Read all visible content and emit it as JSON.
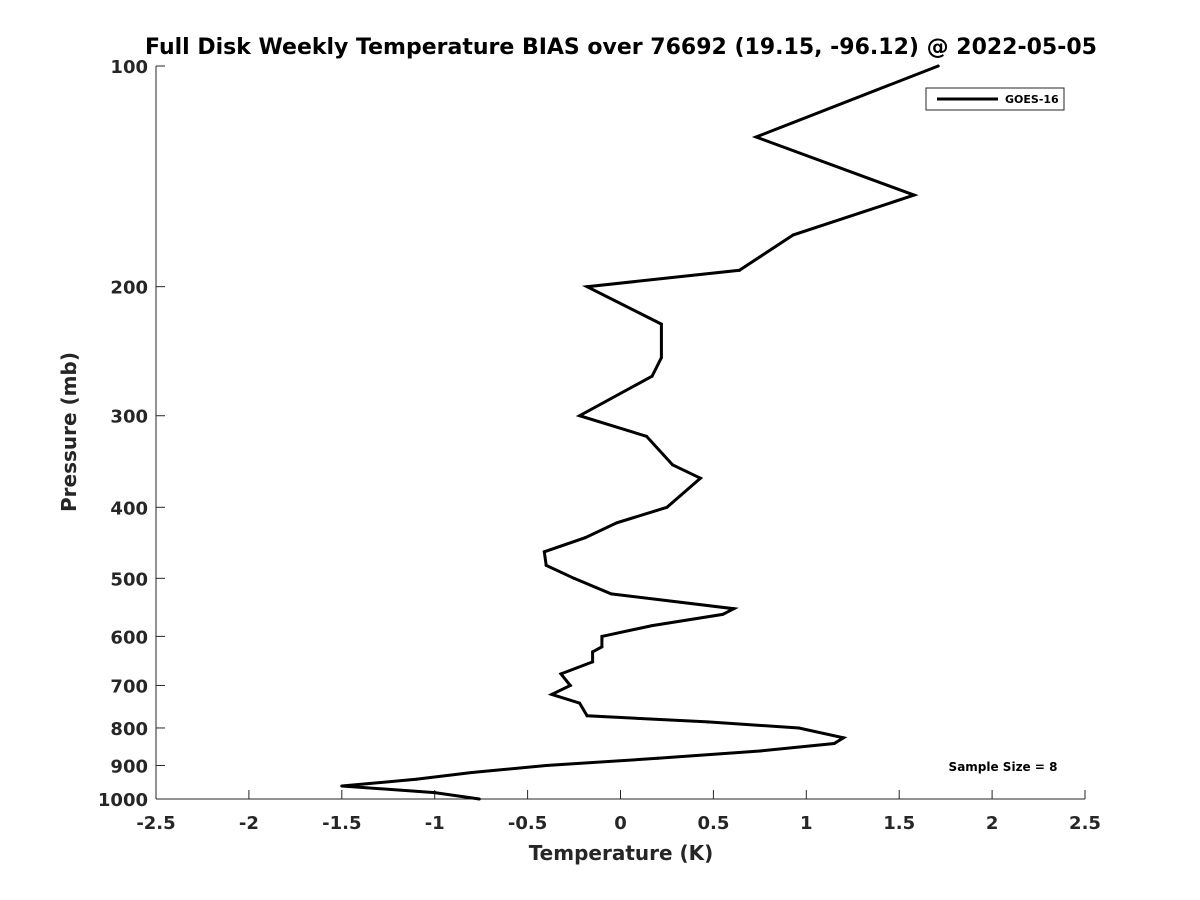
{
  "chart_data": {
    "type": "line",
    "title": "Full Disk Weekly Temperature BIAS over 76692 (19.15, -96.12) @ 2022-05-05",
    "xlabel": "Temperature (K)",
    "ylabel": "Pressure (mb)",
    "xlim": [
      -2.5,
      2.5
    ],
    "ylim": [
      100,
      1000
    ],
    "y_scale": "log",
    "y_reversed": true,
    "grid": false,
    "x_ticks": [
      -2.5,
      -2,
      -1.5,
      -1,
      -0.5,
      0,
      0.5,
      1,
      1.5,
      2,
      2.5
    ],
    "x_tick_labels": [
      "-2.5",
      "-2",
      "-1.5",
      "-1",
      "-0.5",
      "0",
      "0.5",
      "1",
      "1.5",
      "2",
      "2.5"
    ],
    "y_ticks": [
      100,
      200,
      300,
      400,
      500,
      600,
      700,
      800,
      900,
      1000
    ],
    "y_tick_labels": [
      "100",
      "200",
      "300",
      "400",
      "500",
      "600",
      "700",
      "800",
      "900",
      "1000"
    ],
    "legend_position": "top-right",
    "series": [
      {
        "name": "GOES-16",
        "color": "#000000",
        "points": [
          {
            "p": 100,
            "t": 1.71
          },
          {
            "p": 125,
            "t": 0.73
          },
          {
            "p": 150,
            "t": 1.58
          },
          {
            "p": 170,
            "t": 0.93
          },
          {
            "p": 190,
            "t": 0.64
          },
          {
            "p": 200,
            "t": -0.18
          },
          {
            "p": 225,
            "t": 0.22
          },
          {
            "p": 250,
            "t": 0.22
          },
          {
            "p": 265,
            "t": 0.17
          },
          {
            "p": 300,
            "t": -0.22
          },
          {
            "p": 320,
            "t": 0.14
          },
          {
            "p": 350,
            "t": 0.28
          },
          {
            "p": 365,
            "t": 0.43
          },
          {
            "p": 400,
            "t": 0.25
          },
          {
            "p": 420,
            "t": -0.02
          },
          {
            "p": 440,
            "t": -0.19
          },
          {
            "p": 460,
            "t": -0.41
          },
          {
            "p": 480,
            "t": -0.4
          },
          {
            "p": 500,
            "t": -0.25
          },
          {
            "p": 525,
            "t": -0.05
          },
          {
            "p": 550,
            "t": 0.61
          },
          {
            "p": 560,
            "t": 0.55
          },
          {
            "p": 580,
            "t": 0.17
          },
          {
            "p": 600,
            "t": -0.1
          },
          {
            "p": 605,
            "t": -0.1
          },
          {
            "p": 620,
            "t": -0.1
          },
          {
            "p": 630,
            "t": -0.15
          },
          {
            "p": 650,
            "t": -0.15
          },
          {
            "p": 675,
            "t": -0.32
          },
          {
            "p": 690,
            "t": -0.29
          },
          {
            "p": 700,
            "t": -0.27
          },
          {
            "p": 720,
            "t": -0.37
          },
          {
            "p": 740,
            "t": -0.22
          },
          {
            "p": 770,
            "t": -0.18
          },
          {
            "p": 785,
            "t": 0.47
          },
          {
            "p": 800,
            "t": 0.96
          },
          {
            "p": 825,
            "t": 1.2
          },
          {
            "p": 840,
            "t": 1.15
          },
          {
            "p": 860,
            "t": 0.75
          },
          {
            "p": 880,
            "t": 0.2
          },
          {
            "p": 900,
            "t": -0.4
          },
          {
            "p": 920,
            "t": -0.8
          },
          {
            "p": 940,
            "t": -1.1
          },
          {
            "p": 960,
            "t": -1.5
          },
          {
            "p": 980,
            "t": -1.0
          },
          {
            "p": 1000,
            "t": -0.76
          }
        ]
      }
    ],
    "annotations": [
      "Sample Size = 8"
    ]
  }
}
